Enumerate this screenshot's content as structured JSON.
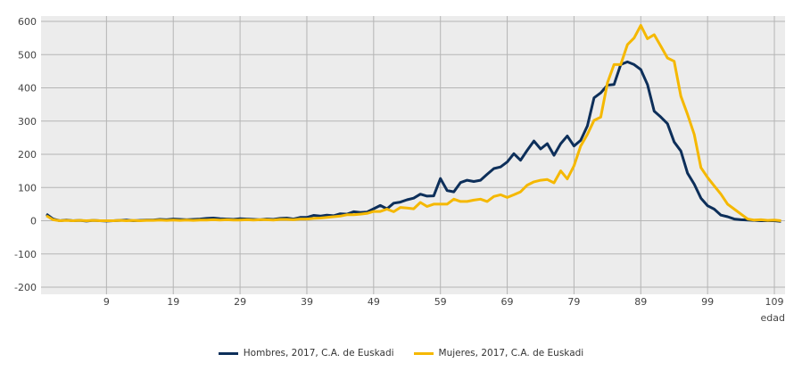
{
  "chart_data": {
    "type": "line",
    "title": "",
    "xlabel": "edad",
    "ylabel": "",
    "xlim": [
      -0.8,
      110.6
    ],
    "ylim": [
      -200,
      600
    ],
    "yticks": [
      -200,
      -100,
      0,
      100,
      200,
      300,
      400,
      500,
      600
    ],
    "xticks": [
      9,
      19,
      29,
      39,
      49,
      59,
      69,
      79,
      89,
      99,
      109
    ],
    "grid": true,
    "legend_position": "bottom",
    "x_start": 0,
    "series": [
      {
        "name": "Hombres, 2017, C.A. de Euskadi",
        "color": "#0d2f5a",
        "values": [
          20,
          5,
          0,
          2,
          0,
          1,
          -1,
          1,
          0,
          -1,
          0,
          1,
          2,
          0,
          1,
          2,
          2,
          4,
          3,
          5,
          4,
          3,
          4,
          5,
          7,
          8,
          6,
          5,
          4,
          6,
          5,
          4,
          3,
          5,
          4,
          7,
          8,
          5,
          10,
          10,
          16,
          14,
          17,
          15,
          21,
          20,
          27,
          25,
          26,
          36,
          46,
          36,
          53,
          56,
          63,
          68,
          80,
          74,
          75,
          127,
          91,
          87,
          115,
          122,
          118,
          122,
          140,
          157,
          162,
          177,
          202,
          182,
          212,
          240,
          216,
          232,
          197,
          232,
          255,
          225,
          242,
          285,
          370,
          385,
          408,
          410,
          470,
          478,
          470,
          455,
          410,
          330,
          312,
          292,
          237,
          210,
          143,
          110,
          68,
          45,
          35,
          17,
          12,
          5,
          3,
          2,
          1,
          0,
          0,
          0,
          -2
        ]
      },
      {
        "name": "Mujeres, 2017, C.A. de Euskadi",
        "color": "#f5b800",
        "values": [
          15,
          3,
          0,
          1,
          0,
          1,
          0,
          1,
          0,
          0,
          0,
          1,
          0,
          1,
          0,
          1,
          1,
          2,
          1,
          2,
          1,
          2,
          1,
          2,
          2,
          3,
          2,
          3,
          2,
          2,
          3,
          2,
          3,
          3,
          2,
          4,
          4,
          3,
          5,
          5,
          7,
          8,
          10,
          12,
          14,
          18,
          18,
          20,
          22,
          28,
          28,
          35,
          27,
          40,
          38,
          36,
          55,
          43,
          50,
          50,
          50,
          65,
          58,
          58,
          62,
          65,
          58,
          73,
          78,
          70,
          78,
          87,
          107,
          117,
          122,
          124,
          114,
          150,
          126,
          165,
          225,
          260,
          302,
          312,
          415,
          470,
          470,
          530,
          550,
          588,
          548,
          560,
          525,
          490,
          480,
          375,
          320,
          260,
          160,
          130,
          105,
          80,
          50,
          35,
          20,
          5,
          2,
          3,
          1,
          2,
          0
        ]
      }
    ]
  }
}
